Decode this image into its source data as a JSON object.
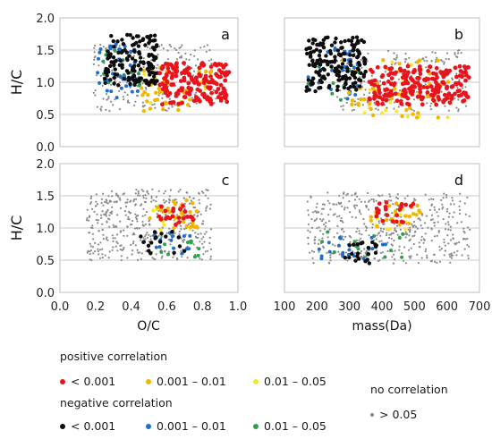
{
  "chart_data": [
    {
      "panel": "a",
      "type": "scatter",
      "xlabel": "O/C",
      "ylabel": "H/C",
      "xlim": [
        0.0,
        1.0
      ],
      "ylim": [
        0.0,
        2.0
      ],
      "xticks": [
        "0.0",
        "0.2",
        "0.4",
        "0.6",
        "0.8",
        "1.0"
      ],
      "yticks": [
        "0.0",
        "0.5",
        "1.0",
        "1.5",
        "2.0"
      ],
      "xticks_visible": false,
      "grid": "horizontal",
      "clusters": [
        {
          "class": "none",
          "x": [
            0.18,
            0.88
          ],
          "y": [
            0.55,
            1.6
          ],
          "n": 220
        },
        {
          "class": "neg_high",
          "x": [
            0.25,
            0.55
          ],
          "y": [
            0.95,
            1.75
          ],
          "n": 150
        },
        {
          "class": "neg_mid",
          "x": [
            0.2,
            0.45
          ],
          "y": [
            0.75,
            1.6
          ],
          "n": 40
        },
        {
          "class": "neg_low",
          "x": [
            0.2,
            0.5
          ],
          "y": [
            0.9,
            1.5
          ],
          "n": 15
        },
        {
          "class": "pos_high",
          "x": [
            0.55,
            0.95
          ],
          "y": [
            0.65,
            1.3
          ],
          "n": 170
        },
        {
          "class": "pos_mid",
          "x": [
            0.45,
            0.85
          ],
          "y": [
            0.55,
            1.25
          ],
          "n": 40
        },
        {
          "class": "pos_low",
          "x": [
            0.45,
            0.85
          ],
          "y": [
            0.55,
            1.25
          ],
          "n": 15
        }
      ]
    },
    {
      "panel": "b",
      "type": "scatter",
      "xlabel": "mass(Da)",
      "ylabel": "H/C",
      "xlim": [
        100,
        700
      ],
      "ylim": [
        0.0,
        2.0
      ],
      "xticks": [
        "100",
        "200",
        "300",
        "400",
        "500",
        "600",
        "700"
      ],
      "xticks_visible": false,
      "grid": "horizontal",
      "clusters": [
        {
          "class": "none",
          "x": [
            260,
            660
          ],
          "y": [
            0.55,
            1.5
          ],
          "n": 230
        },
        {
          "class": "neg_high",
          "x": [
            165,
            350
          ],
          "y": [
            0.85,
            1.7
          ],
          "n": 170
        },
        {
          "class": "neg_mid",
          "x": [
            170,
            330
          ],
          "y": [
            0.7,
            1.55
          ],
          "n": 35
        },
        {
          "class": "neg_low",
          "x": [
            170,
            330
          ],
          "y": [
            0.7,
            1.4
          ],
          "n": 10
        },
        {
          "class": "pos_high",
          "x": [
            360,
            670
          ],
          "y": [
            0.65,
            1.25
          ],
          "n": 200
        },
        {
          "class": "pos_mid",
          "x": [
            280,
            620
          ],
          "y": [
            0.45,
            1.35
          ],
          "n": 45
        },
        {
          "class": "pos_low",
          "x": [
            250,
            620
          ],
          "y": [
            0.45,
            1.35
          ],
          "n": 20
        }
      ]
    },
    {
      "panel": "c",
      "type": "scatter",
      "xlabel": "O/C",
      "ylabel": "H/C",
      "xlim": [
        0.0,
        1.0
      ],
      "ylim": [
        0.0,
        2.0
      ],
      "xticks": [
        "0.0",
        "0.2",
        "0.4",
        "0.6",
        "0.8",
        "1.0"
      ],
      "yticks": [
        "0.0",
        "0.5",
        "1.0",
        "1.5",
        "2.0"
      ],
      "grid": "horizontal",
      "clusters": [
        {
          "class": "none",
          "x": [
            0.15,
            0.85
          ],
          "y": [
            0.5,
            1.6
          ],
          "n": 450
        },
        {
          "class": "pos_high",
          "x": [
            0.55,
            0.75
          ],
          "y": [
            1.05,
            1.35
          ],
          "n": 22
        },
        {
          "class": "pos_mid",
          "x": [
            0.5,
            0.8
          ],
          "y": [
            1.0,
            1.45
          ],
          "n": 28
        },
        {
          "class": "pos_low",
          "x": [
            0.5,
            0.85
          ],
          "y": [
            0.95,
            1.4
          ],
          "n": 14
        },
        {
          "class": "neg_high",
          "x": [
            0.45,
            0.7
          ],
          "y": [
            0.6,
            0.95
          ],
          "n": 18
        },
        {
          "class": "neg_mid",
          "x": [
            0.5,
            0.75
          ],
          "y": [
            0.55,
            0.95
          ],
          "n": 14
        },
        {
          "class": "neg_low",
          "x": [
            0.55,
            0.8
          ],
          "y": [
            0.55,
            0.85
          ],
          "n": 10
        }
      ]
    },
    {
      "panel": "d",
      "type": "scatter",
      "xlabel": "mass(Da)",
      "ylabel": "H/C",
      "xlim": [
        100,
        700
      ],
      "ylim": [
        0.0,
        2.0
      ],
      "xticks": [
        "100",
        "200",
        "300",
        "400",
        "500",
        "600",
        "700"
      ],
      "grid": "horizontal",
      "clusters": [
        {
          "class": "none",
          "x": [
            170,
            670
          ],
          "y": [
            0.45,
            1.55
          ],
          "n": 480
        },
        {
          "class": "pos_high",
          "x": [
            380,
            500
          ],
          "y": [
            1.05,
            1.4
          ],
          "n": 22
        },
        {
          "class": "pos_mid",
          "x": [
            360,
            520
          ],
          "y": [
            1.0,
            1.45
          ],
          "n": 22
        },
        {
          "class": "pos_low",
          "x": [
            380,
            540
          ],
          "y": [
            0.95,
            1.35
          ],
          "n": 12
        },
        {
          "class": "neg_high",
          "x": [
            280,
            400
          ],
          "y": [
            0.45,
            0.8
          ],
          "n": 22
        },
        {
          "class": "neg_mid",
          "x": [
            200,
            420
          ],
          "y": [
            0.5,
            0.95
          ],
          "n": 22
        },
        {
          "class": "neg_low",
          "x": [
            200,
            470
          ],
          "y": [
            0.5,
            0.95
          ],
          "n": 14
        }
      ]
    }
  ],
  "classes": {
    "pos_high": {
      "color": "#e8141c",
      "r": 2.4
    },
    "pos_mid": {
      "color": "#f2b600",
      "r": 2.2
    },
    "pos_low": {
      "color": "#f6e82e",
      "r": 2.0
    },
    "neg_high": {
      "color": "#0d0d0d",
      "r": 2.2
    },
    "neg_mid": {
      "color": "#1f6fc8",
      "r": 2.0
    },
    "neg_low": {
      "color": "#2e9e4f",
      "r": 2.0
    },
    "none": {
      "color": "#8a8a8a",
      "r": 1.1
    }
  },
  "legend": {
    "positive_title": "positive correlation",
    "negative_title": "negative correlation",
    "none_title": "no correlation",
    "positive": [
      {
        "label": "< 0.001",
        "color": "#e8141c"
      },
      {
        "label": "0.001 – 0.01",
        "color": "#f2b600"
      },
      {
        "label": "0.01 – 0.05",
        "color": "#f6e82e"
      }
    ],
    "negative": [
      {
        "label": "< 0.001",
        "color": "#0d0d0d"
      },
      {
        "label": "0.001 – 0.01",
        "color": "#1f6fc8"
      },
      {
        "label": "0.01 – 0.05",
        "color": "#2e9e4f"
      }
    ],
    "none": [
      {
        "label": "> 0.05",
        "color": "#8a8a8a"
      }
    ]
  }
}
